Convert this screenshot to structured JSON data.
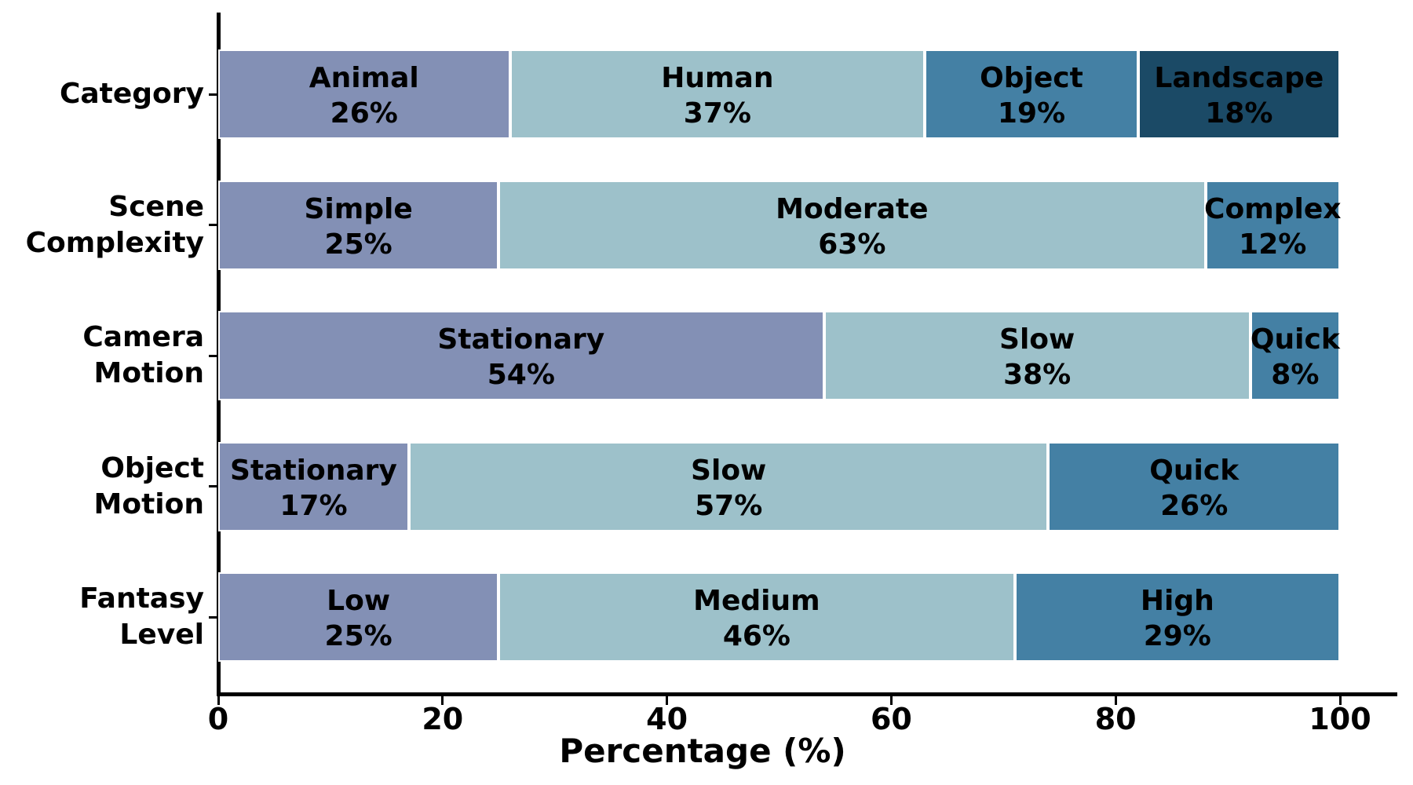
{
  "chart_data": {
    "type": "bar",
    "subtype": "horizontal-stacked",
    "title": "",
    "xlabel": "Percentage (%)",
    "ylabel": "",
    "x_ticks": [
      0,
      20,
      40,
      60,
      80,
      100
    ],
    "xlim": [
      0,
      105
    ],
    "grid": false,
    "legend": "none (labels drawn inside segments)",
    "palette": [
      "#8390B5",
      "#9DC1CA",
      "#4480A4",
      "#1B4A66"
    ],
    "text_color": "#000000",
    "axis_color": "#000000",
    "background_color": "#FFFFFF",
    "rows": [
      {
        "label": "Category",
        "label_lines": [
          "Category"
        ],
        "segments": [
          {
            "name": "Animal",
            "value": 26,
            "display": "26%"
          },
          {
            "name": "Human",
            "value": 37,
            "display": "37%"
          },
          {
            "name": "Object",
            "value": 19,
            "display": "19%"
          },
          {
            "name": "Landscape",
            "value": 18,
            "display": "18%"
          }
        ]
      },
      {
        "label": "Scene Complexity",
        "label_lines": [
          "Scene",
          "Complexity"
        ],
        "segments": [
          {
            "name": "Simple",
            "value": 25,
            "display": "25%"
          },
          {
            "name": "Moderate",
            "value": 63,
            "display": "63%"
          },
          {
            "name": "Complex",
            "value": 12,
            "display": "12%"
          }
        ]
      },
      {
        "label": "Camera Motion",
        "label_lines": [
          "Camera",
          "Motion"
        ],
        "segments": [
          {
            "name": "Stationary",
            "value": 54,
            "display": "54%"
          },
          {
            "name": "Slow",
            "value": 38,
            "display": "38%"
          },
          {
            "name": "Quick",
            "value": 8,
            "display": "8%"
          }
        ]
      },
      {
        "label": "Object Motion",
        "label_lines": [
          "Object",
          "Motion"
        ],
        "segments": [
          {
            "name": "Stationary",
            "value": 17,
            "display": "17%"
          },
          {
            "name": "Slow",
            "value": 57,
            "display": "57%"
          },
          {
            "name": "Quick",
            "value": 26,
            "display": "26%"
          }
        ]
      },
      {
        "label": "Fantasy Level",
        "label_lines": [
          "Fantasy",
          "Level"
        ],
        "segments": [
          {
            "name": "Low",
            "value": 25,
            "display": "25%"
          },
          {
            "name": "Medium",
            "value": 46,
            "display": "46%"
          },
          {
            "name": "High",
            "value": 29,
            "display": "29%"
          }
        ]
      }
    ]
  }
}
